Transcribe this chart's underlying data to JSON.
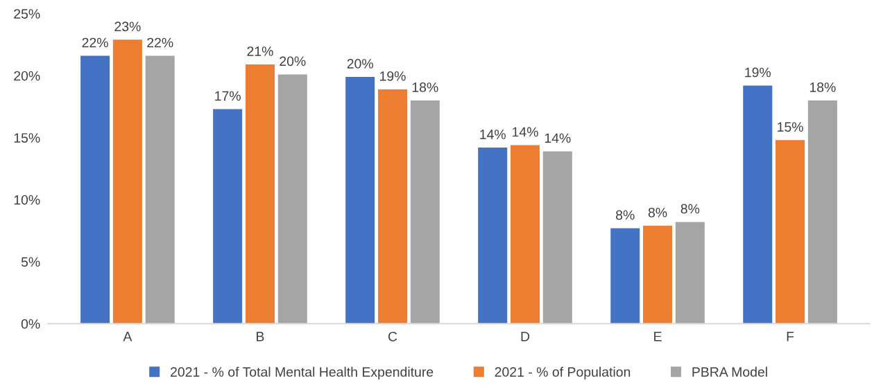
{
  "chart_data": {
    "type": "bar",
    "categories": [
      "A",
      "B",
      "C",
      "D",
      "E",
      "F"
    ],
    "series": [
      {
        "name": "2021 - % of Total Mental Health Expenditure",
        "color": "#4472c4",
        "values": [
          21.6,
          17.3,
          19.9,
          14.2,
          7.7,
          19.2
        ],
        "value_labels": [
          "22%",
          "17%",
          "20%",
          "14%",
          "8%",
          "19%"
        ]
      },
      {
        "name": "2021 - % of Population",
        "color": "#ed7d31",
        "values": [
          22.9,
          20.9,
          18.9,
          14.4,
          7.9,
          14.8
        ],
        "value_labels": [
          "23%",
          "21%",
          "19%",
          "14%",
          "8%",
          "15%"
        ]
      },
      {
        "name": "PBRA Model",
        "color": "#a5a5a5",
        "values": [
          21.6,
          20.1,
          18.0,
          13.9,
          8.2,
          18.0
        ],
        "value_labels": [
          "22%",
          "20%",
          "18%",
          "14%",
          "8%",
          "18%"
        ]
      }
    ],
    "ylim": [
      0,
      25
    ],
    "yticks": [
      {
        "value": 0,
        "label": "0%"
      },
      {
        "value": 5,
        "label": "5%"
      },
      {
        "value": 10,
        "label": "10%"
      },
      {
        "value": 15,
        "label": "15%"
      },
      {
        "value": 20,
        "label": "20%"
      },
      {
        "value": 25,
        "label": "25%"
      }
    ],
    "grid": false,
    "legend": "bottom"
  }
}
